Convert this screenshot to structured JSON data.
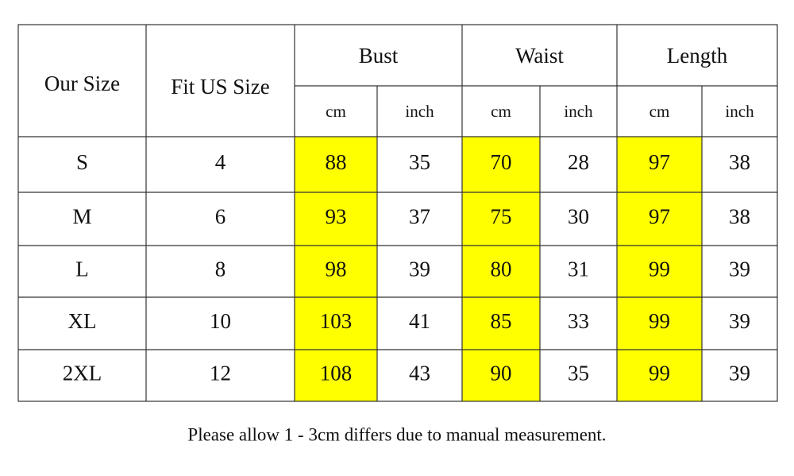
{
  "table": {
    "header": {
      "size": "Our Size",
      "fit": "Fit US Size",
      "groups": [
        "Bust",
        "Waist",
        "Length"
      ],
      "units": [
        "cm",
        "inch",
        "cm",
        "inch",
        "cm",
        "inch"
      ]
    },
    "rows": [
      [
        "S",
        4,
        88,
        35,
        70,
        28,
        97,
        38
      ],
      [
        "M",
        6,
        93,
        37,
        75,
        30,
        97,
        38
      ],
      [
        "L",
        8,
        98,
        39,
        80,
        31,
        99,
        39
      ],
      [
        "XL",
        10,
        103,
        41,
        85,
        33,
        99,
        39
      ],
      [
        "2XL",
        12,
        108,
        43,
        90,
        35,
        99,
        39
      ]
    ]
  },
  "note": "Please allow 1 - 3cm differs due to manual measurement."
}
